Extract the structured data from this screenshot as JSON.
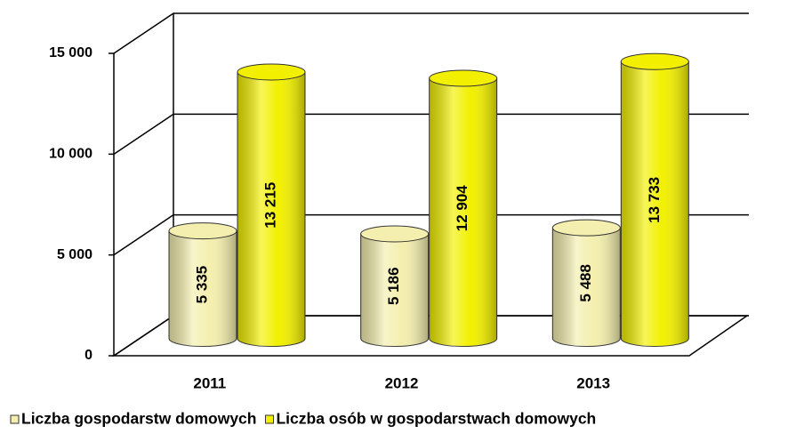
{
  "chart_data": {
    "type": "bar3d",
    "categories": [
      "2011",
      "2012",
      "2013"
    ],
    "series": [
      {
        "name": "Liczba gospodarstw domowych",
        "color": "#f4efae",
        "values": [
          5335,
          5186,
          5488
        ],
        "value_labels": [
          "5 335",
          "5 186",
          "5 488"
        ]
      },
      {
        "name": "Liczba osób w gospodarstwach domowych",
        "color": "#f2f000",
        "values": [
          13215,
          12904,
          13733
        ],
        "value_labels": [
          "13 215",
          "12 904",
          "13 733"
        ]
      }
    ],
    "ylim": [
      0,
      15000
    ],
    "yticks": [
      0,
      {
        "value": 5000,
        "label": "5 000"
      },
      {
        "value": 10000,
        "label": "10 000"
      },
      {
        "value": 15000,
        "label": "15 000"
      }
    ],
    "grid": true,
    "legend": "bottom"
  }
}
